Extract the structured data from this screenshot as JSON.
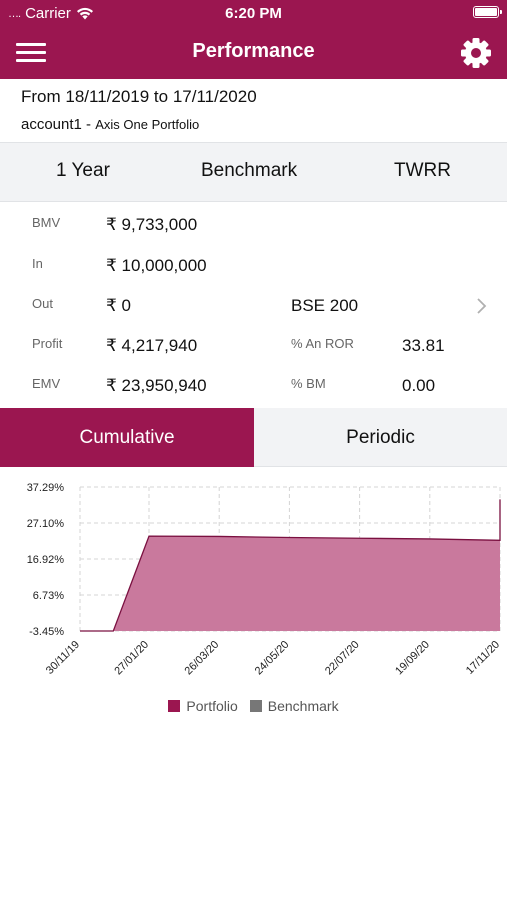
{
  "status_bar": {
    "carrier": "Carrier",
    "time": "6:20 PM"
  },
  "header": {
    "title": "Performance"
  },
  "info": {
    "date_range": "From 18/11/2019 to 17/11/2020",
    "account": "account1 -",
    "portfolio": "Axis One Portfolio"
  },
  "filters": {
    "period": "1 Year",
    "benchmark": "Benchmark",
    "method": "TWRR"
  },
  "stats": {
    "bmv_label": "BMV",
    "bmv_value": "₹ 9,733,000",
    "in_label": "In",
    "in_value": "₹ 10,000,000",
    "out_label": "Out",
    "out_value": "₹ 0",
    "benchmark_name": "BSE 200",
    "profit_label": "Profit",
    "profit_value": "₹ 4,217,940",
    "ror_label": "% An ROR",
    "ror_value": "33.81",
    "emv_label": "EMV",
    "emv_value": "₹ 23,950,940",
    "bm_label": "% BM",
    "bm_value": "0.00"
  },
  "tabs": {
    "cumulative": "Cumulative",
    "periodic": "Periodic"
  },
  "colors": {
    "brand": "#9b1650",
    "area_fill": "#c9799d",
    "benchmark": "#777777"
  },
  "chart_data": {
    "type": "area",
    "x_tick_labels": [
      "30/11/19",
      "27/01/20",
      "26/03/20",
      "24/05/20",
      "22/07/20",
      "19/09/20",
      "17/11/20"
    ],
    "y_tick_labels": [
      "37.29%",
      "27.10%",
      "16.92%",
      "6.73%",
      "-3.45%"
    ],
    "ylim": [
      -3.45,
      37.29
    ],
    "grid": true,
    "legend_position": "bottom",
    "series": [
      {
        "name": "Portfolio",
        "x": [
          "30/11/19",
          "28/12/19",
          "27/01/20",
          "26/03/20",
          "24/05/20",
          "22/07/20",
          "19/09/20",
          "17/11/20",
          "17/11/20"
        ],
        "values": [
          -3.45,
          -3.45,
          23.4,
          23.3,
          23.0,
          22.8,
          22.6,
          22.2,
          33.8
        ]
      },
      {
        "name": "Benchmark",
        "x": [],
        "values": []
      }
    ]
  }
}
